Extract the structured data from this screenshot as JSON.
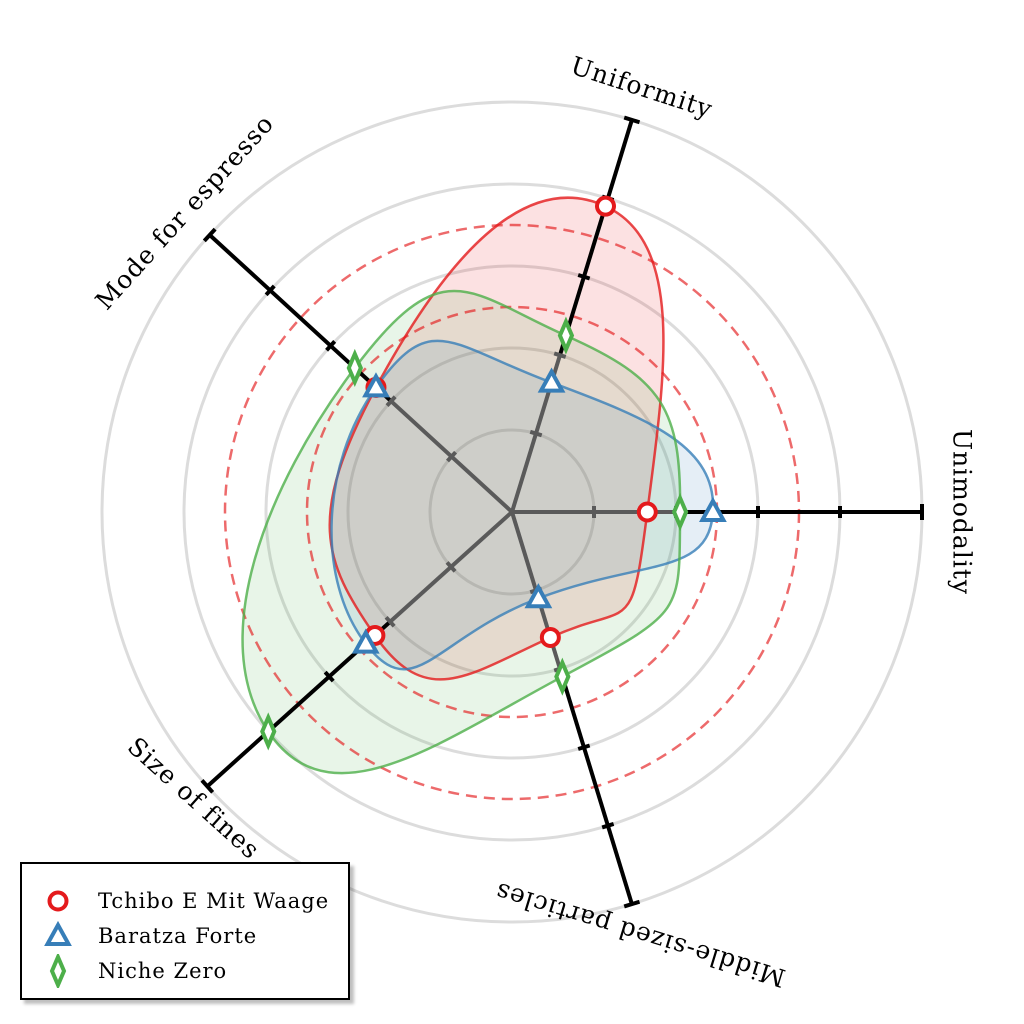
{
  "chart_data": {
    "type": "radar",
    "axes": [
      "Uniformity",
      "Mode for espresso",
      "Size of fines",
      "Middle-sized particles",
      "Unimodality"
    ],
    "series": [
      {
        "name": "Tchibo E Mit Waage",
        "color": "#e41a1c",
        "marker": "circle",
        "values": [
          0.78,
          0.45,
          0.45,
          0.32,
          0.33
        ]
      },
      {
        "name": "Baratza Forte",
        "color": "#377eb8",
        "marker": "triangle",
        "values": [
          0.33,
          0.45,
          0.48,
          0.22,
          0.49
        ]
      },
      {
        "name": "Niche Zero",
        "color": "#4daf4a",
        "marker": "diamond",
        "values": [
          0.45,
          0.52,
          0.8,
          0.42,
          0.41
        ]
      }
    ],
    "reference_rings": [
      0.5,
      0.7
    ],
    "grid": true,
    "legend_position": "bottom-left"
  }
}
